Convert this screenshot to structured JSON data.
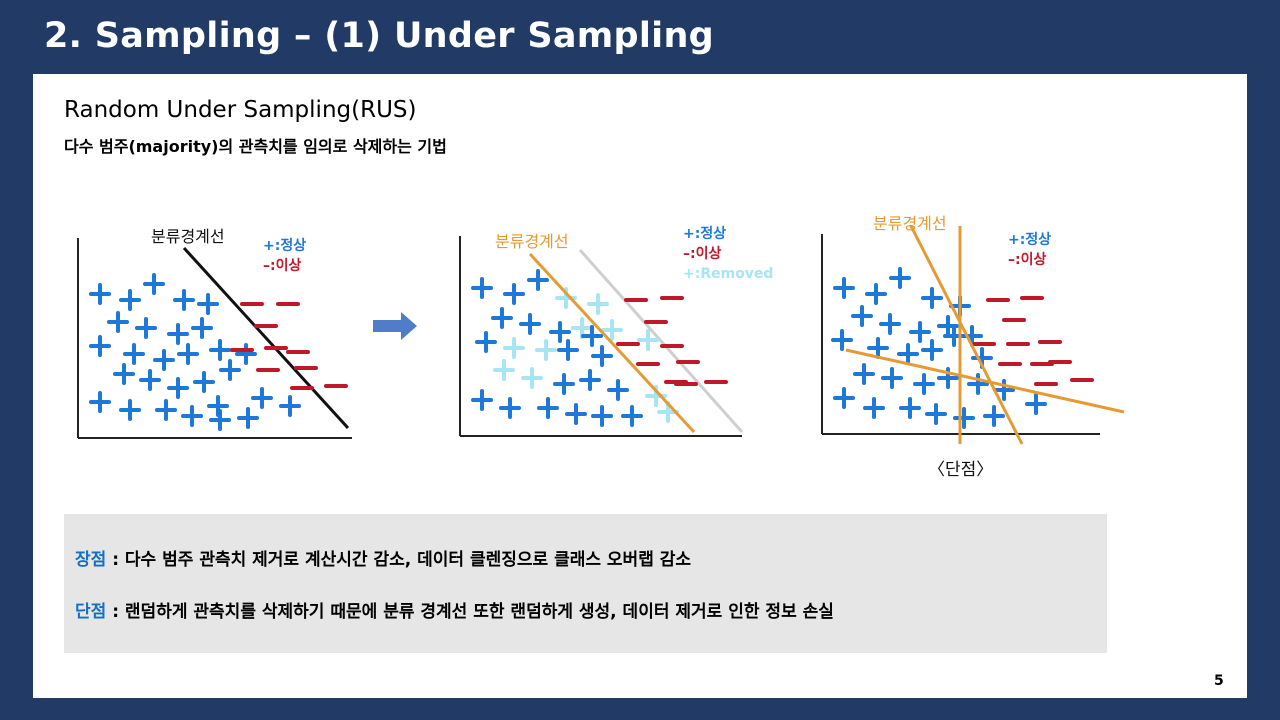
{
  "slide": {
    "title": "2. Sampling – (1) Under Sampling",
    "subtitle": "Random Under Sampling(RUS)",
    "description": "다수 범주(majority)의 관측치를 임의로 삭제하는 기법",
    "page_number": "5"
  },
  "diagrams": {
    "boundary_label": "분류경계선",
    "legend": {
      "positive": "+:정상",
      "negative": "–:이상",
      "removed": "+:Removed"
    },
    "weakness_label": "〈단점〉"
  },
  "colors": {
    "header_bg": "#213a66",
    "positive": "#1d78d8",
    "negative": "#c0182b",
    "removed": "#a7e4f4",
    "boundary": "#e59a33",
    "key_blue": "#1470c6"
  },
  "summary": {
    "pros_key": "장점",
    "pros_text": " : 다수 범주 관측치 제거로 계산시간 감소, 데이터 클렌징으로 클래스 오버랩 감소",
    "cons_key": "단점",
    "cons_text": " : 랜덤하게 관측치를 삭제하기 때문에 분류 경계선 또한 랜덤하게 생성, 데이터 제거로 인한 정보 손실"
  }
}
